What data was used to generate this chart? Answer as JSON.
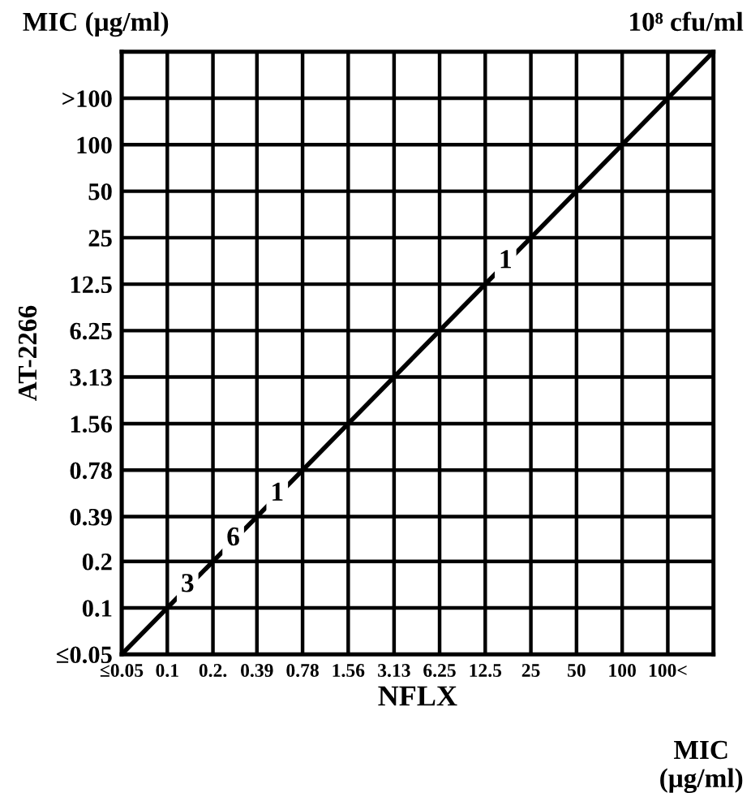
{
  "chart_data": {
    "type": "line",
    "xlabel": "NFLX",
    "ylabel": "AT-2266",
    "annotations": [
      "MIC (μg/ml)",
      "10⁸ cfu/ml",
      "MIC\n(μg/ml)",
      {
        "text": "3",
        "x": 0.1,
        "y": 0.1
      },
      {
        "text": "6",
        "x": 0.2,
        "y": 0.2
      },
      {
        "text": "1",
        "x": 0.39,
        "y": 0.39
      },
      {
        "text": "1",
        "x": 12.5,
        "y": 12.5
      }
    ],
    "log": "xy",
    "xlim": [
      0.05,
      400
    ],
    "ylim": [
      0.05,
      400
    ],
    "xticks": [
      {
        "value": 0.05,
        "label": "≤0.05"
      },
      0.1,
      {
        "value": 0.2,
        "label": "0.2."
      },
      0.39,
      0.78,
      1.56,
      3.13,
      6.25,
      12.5,
      25,
      50,
      100,
      {
        "value": 200,
        "label": "100<"
      }
    ],
    "yticks": [
      {
        "value": 0.05,
        "label": "≤0.05"
      },
      0.1,
      0.2,
      0.39,
      0.78,
      1.56,
      3.13,
      6.25,
      12.5,
      25,
      50,
      100,
      {
        "value": 200,
        "label": ">100"
      }
    ],
    "grid": true,
    "legend": false,
    "series": [
      {
        "color": "#000000",
        "x": [
          0.05,
          400
        ],
        "values": [
          0.05,
          400
        ],
        "line_style": "solid",
        "marker": "none"
      }
    ]
  }
}
